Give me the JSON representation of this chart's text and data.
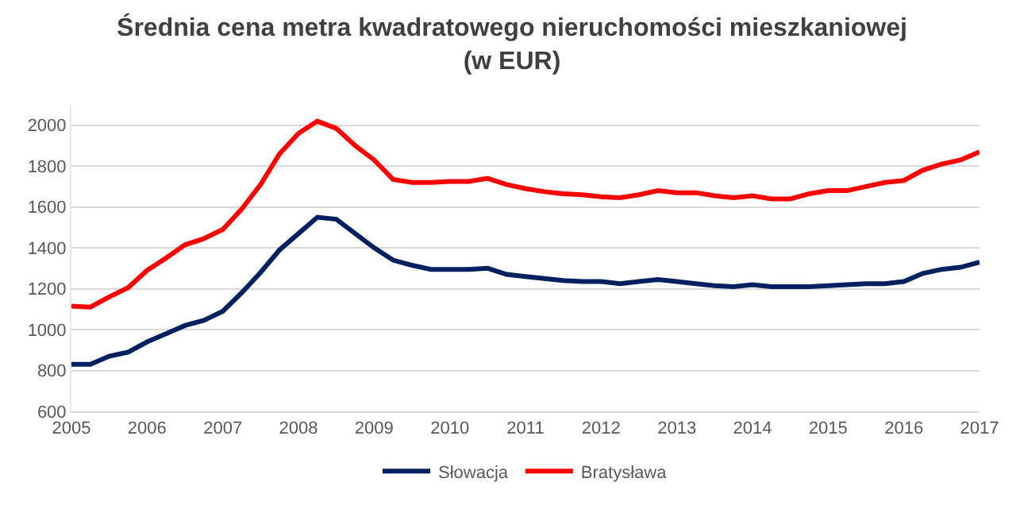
{
  "chart_data": {
    "type": "line",
    "title": "Średnia cena metra kwadratowego nieruchomości mieszkaniowej\n(w EUR)",
    "x": [
      2005,
      2005.25,
      2005.5,
      2005.75,
      2006,
      2006.25,
      2006.5,
      2006.75,
      2007,
      2007.25,
      2007.5,
      2007.75,
      2008,
      2008.25,
      2008.5,
      2008.75,
      2009,
      2009.25,
      2009.5,
      2009.75,
      2010,
      2010.25,
      2010.5,
      2010.75,
      2011,
      2011.25,
      2011.5,
      2011.75,
      2012,
      2012.25,
      2012.5,
      2012.75,
      2013,
      2013.25,
      2013.5,
      2013.75,
      2014,
      2014.25,
      2014.5,
      2014.75,
      2015,
      2015.25,
      2015.5,
      2015.75,
      2016,
      2016.25,
      2016.5,
      2016.75,
      2017
    ],
    "series": [
      {
        "name": "Słowacja",
        "color": "#002060",
        "values": [
          830,
          830,
          870,
          890,
          940,
          980,
          1020,
          1045,
          1090,
          1180,
          1280,
          1390,
          1470,
          1550,
          1540,
          1470,
          1400,
          1340,
          1315,
          1295,
          1295,
          1295,
          1300,
          1270,
          1260,
          1250,
          1240,
          1235,
          1235,
          1225,
          1235,
          1245,
          1235,
          1225,
          1215,
          1210,
          1220,
          1210,
          1210,
          1210,
          1215,
          1220,
          1225,
          1225,
          1235,
          1275,
          1295,
          1305,
          1330
        ]
      },
      {
        "name": "Bratysława",
        "color": "#ff0000",
        "values": [
          1115,
          1110,
          1160,
          1205,
          1290,
          1350,
          1415,
          1445,
          1490,
          1590,
          1710,
          1860,
          1960,
          2020,
          1985,
          1900,
          1830,
          1735,
          1720,
          1720,
          1725,
          1725,
          1740,
          1710,
          1690,
          1675,
          1665,
          1660,
          1650,
          1645,
          1660,
          1680,
          1670,
          1670,
          1655,
          1645,
          1655,
          1640,
          1640,
          1665,
          1680,
          1680,
          1700,
          1720,
          1730,
          1780,
          1810,
          1830,
          1870
        ]
      }
    ],
    "xlim": [
      2005,
      2017
    ],
    "xticks": [
      2005,
      2006,
      2007,
      2008,
      2009,
      2010,
      2011,
      2012,
      2013,
      2014,
      2015,
      2016,
      2017
    ],
    "ylim": [
      600,
      2100
    ],
    "yticks": [
      600,
      800,
      1000,
      1200,
      1400,
      1600,
      1800,
      2000
    ],
    "grid": "y",
    "legend": "bottom",
    "marker": "none",
    "line_style": "solid"
  }
}
